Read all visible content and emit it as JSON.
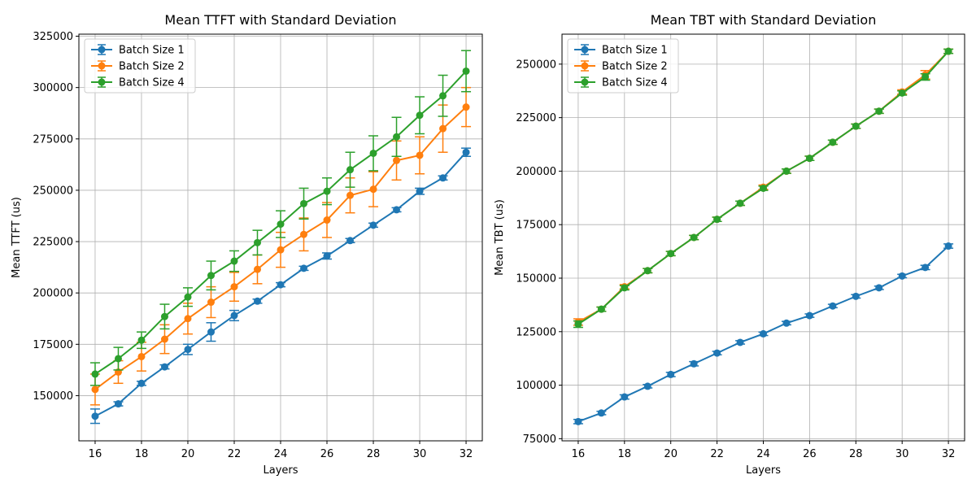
{
  "chart_data": [
    {
      "type": "line",
      "title": "Mean TTFT with Standard Deviation",
      "xlabel": "Layers",
      "ylabel": "Mean TTFT (us)",
      "x": [
        16,
        17,
        18,
        19,
        20,
        21,
        22,
        23,
        24,
        25,
        26,
        27,
        28,
        29,
        30,
        31,
        32
      ],
      "xlim": [
        15.3,
        32.7
      ],
      "ylim": [
        128000,
        326000
      ],
      "xticks": [
        16,
        18,
        20,
        22,
        24,
        26,
        28,
        30,
        32
      ],
      "yticks": [
        150000,
        175000,
        200000,
        225000,
        250000,
        275000,
        300000,
        325000
      ],
      "grid": true,
      "legend": "top-left",
      "error_bars": true,
      "series": [
        {
          "name": "Batch Size 1",
          "color": "#1f77b4",
          "values": [
            140000,
            146000,
            156000,
            164000,
            172500,
            181000,
            189000,
            196000,
            204000,
            212000,
            218000,
            225500,
            233000,
            240500,
            249500,
            256000,
            268500
          ],
          "errors": [
            3500,
            1000,
            1000,
            1000,
            2500,
            4500,
            2500,
            1000,
            1000,
            1000,
            1500,
            1000,
            1000,
            1000,
            1500,
            1000,
            2000
          ]
        },
        {
          "name": "Batch Size 2",
          "color": "#ff7f0e",
          "values": [
            153000,
            161500,
            169000,
            177500,
            187500,
            195500,
            203000,
            211500,
            221000,
            228500,
            235500,
            247500,
            250500,
            264500,
            267000,
            280000,
            290500
          ],
          "errors": [
            7500,
            5500,
            7000,
            7000,
            7500,
            7500,
            7000,
            7000,
            8500,
            8000,
            8500,
            8500,
            8500,
            9500,
            9000,
            11500,
            9500
          ]
        },
        {
          "name": "Batch Size 4",
          "color": "#2ca02c",
          "values": [
            160500,
            168000,
            177000,
            188500,
            198000,
            208500,
            215500,
            224500,
            233500,
            243500,
            249500,
            260000,
            268000,
            276000,
            286500,
            296000,
            308000
          ],
          "errors": [
            5500,
            5500,
            4000,
            6000,
            4500,
            7000,
            5000,
            6000,
            6500,
            7500,
            6500,
            8500,
            8500,
            9500,
            9000,
            10000,
            10000
          ]
        }
      ]
    },
    {
      "type": "line",
      "title": "Mean TBT with Standard Deviation",
      "xlabel": "Layers",
      "ylabel": "Mean TBT (us)",
      "x": [
        16,
        17,
        18,
        19,
        20,
        21,
        22,
        23,
        24,
        25,
        26,
        27,
        28,
        29,
        30,
        31,
        32
      ],
      "xlim": [
        15.3,
        32.7
      ],
      "ylim": [
        74000,
        264000
      ],
      "xticks": [
        16,
        18,
        20,
        22,
        24,
        26,
        28,
        30,
        32
      ],
      "yticks": [
        75000,
        100000,
        125000,
        150000,
        175000,
        200000,
        225000,
        250000
      ],
      "grid": true,
      "legend": "top-left",
      "error_bars": true,
      "series": [
        {
          "name": "Batch Size 1",
          "color": "#1f77b4",
          "values": [
            83000,
            87000,
            94500,
            99500,
            105000,
            110000,
            115000,
            120000,
            124000,
            129000,
            132500,
            137000,
            141500,
            145500,
            151000,
            155000,
            165000
          ],
          "errors": [
            1000,
            800,
            1000,
            800,
            1000,
            1000,
            800,
            800,
            800,
            800,
            800,
            800,
            800,
            800,
            800,
            1000,
            1000
          ]
        },
        {
          "name": "Batch Size 2",
          "color": "#ff7f0e",
          "values": [
            129500,
            135500,
            146000,
            153500,
            161500,
            169000,
            177500,
            185000,
            192500,
            200000,
            206000,
            213500,
            221000,
            228000,
            237000,
            245000,
            256000
          ],
          "errors": [
            1500,
            1000,
            1000,
            1000,
            1000,
            1000,
            1000,
            1000,
            1000,
            1000,
            1000,
            1000,
            1000,
            1000,
            1000,
            2000,
            1000
          ]
        },
        {
          "name": "Batch Size 4",
          "color": "#2ca02c",
          "values": [
            128500,
            135500,
            145500,
            153500,
            161500,
            169000,
            177500,
            185000,
            192000,
            200000,
            206000,
            213500,
            221000,
            228000,
            236500,
            244000,
            256000
          ],
          "errors": [
            1500,
            1000,
            1000,
            1000,
            1000,
            1000,
            1000,
            1000,
            1000,
            1000,
            1000,
            1000,
            1000,
            1000,
            1000,
            1500,
            1000
          ]
        }
      ]
    }
  ]
}
